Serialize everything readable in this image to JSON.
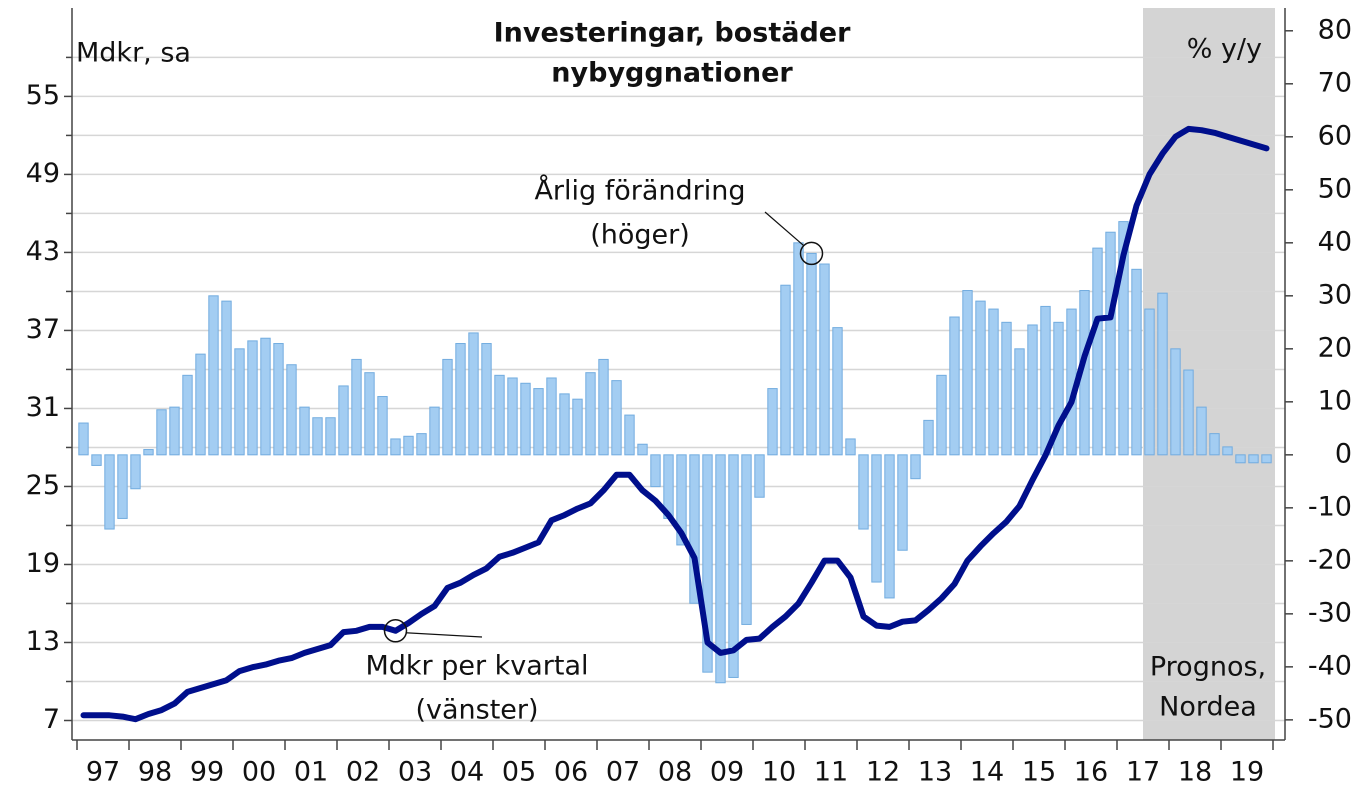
{
  "chart_data": {
    "type": "combo",
    "title": [
      "Investeringar, bostäder",
      "nybyggnationer"
    ],
    "y_label": "Mdkr, sa",
    "y2_label": "% y/y",
    "x_labels": [
      "97",
      "98",
      "99",
      "00",
      "01",
      "02",
      "03",
      "04",
      "05",
      "06",
      "07",
      "08",
      "09",
      "10",
      "11",
      "12",
      "13",
      "14",
      "15",
      "16",
      "17",
      "18",
      "19"
    ],
    "quarters_per_label": 4,
    "forecast_start_index": 82,
    "forecast_label": [
      "Prognos,",
      "Nordea"
    ],
    "forecast_color": "#d4d4d4",
    "ylim": [
      5.5,
      61.8
    ],
    "yticks": [
      7,
      13,
      19,
      25,
      31,
      37,
      43,
      49,
      55
    ],
    "y_minor_ticks": [
      10,
      16,
      22,
      28,
      34,
      40,
      46,
      52,
      58
    ],
    "y2lim": [
      -53.8,
      84.3
    ],
    "y2ticks": [
      -50,
      -40,
      -30,
      -20,
      -10,
      0,
      10,
      20,
      30,
      40,
      50,
      60,
      70,
      80
    ],
    "grid": true,
    "series": [
      {
        "type": "bar",
        "axis": "y2",
        "color": "#a3cdf2",
        "edge_color": "#72acdf",
        "annotation": [
          "Årlig förändring",
          "(höger)"
        ],
        "annotation_index": 56,
        "values": [
          6,
          -2,
          -14,
          -12,
          -6.4,
          1,
          8.5,
          9,
          15,
          19,
          30,
          29,
          20,
          21.5,
          22,
          21,
          17,
          9,
          7,
          7,
          13,
          18,
          15.5,
          11,
          3,
          3.5,
          4,
          9,
          18,
          21,
          23,
          21,
          15,
          14.5,
          13.5,
          12.5,
          14.5,
          11.5,
          10.5,
          15.5,
          18,
          14,
          7.5,
          2,
          -6,
          -12,
          -17,
          -28,
          -41,
          -43,
          -42,
          -32,
          -8,
          12.5,
          32,
          40,
          38,
          36,
          24,
          3,
          -14,
          -24,
          -27,
          -18,
          -4.5,
          6.5,
          15,
          26,
          31,
          29,
          27.5,
          25,
          20,
          24.5,
          28,
          25,
          27.5,
          31,
          39,
          42,
          44,
          35,
          27.5,
          30.5,
          20,
          16,
          9,
          4,
          1.5,
          -1.5,
          -1.5,
          -1.5
        ]
      },
      {
        "type": "line",
        "axis": "y",
        "color": "#000f8c",
        "annotation": [
          "Mdkr per kvartal",
          "(vänster)"
        ],
        "annotation_index": 24,
        "values": [
          7.4,
          7.4,
          7.4,
          7.3,
          7.1,
          7.5,
          7.8,
          8.3,
          9.2,
          9.5,
          9.8,
          10.1,
          10.8,
          11.1,
          11.3,
          11.6,
          11.8,
          12.2,
          12.5,
          12.8,
          13.8,
          13.9,
          14.2,
          14.2,
          13.9,
          14.5,
          15.2,
          15.8,
          17.2,
          17.6,
          18.2,
          18.7,
          19.6,
          19.9,
          20.3,
          20.7,
          22.4,
          22.8,
          23.3,
          23.7,
          24.7,
          25.9,
          25.9,
          24.7,
          23.9,
          22.8,
          21.4,
          19.5,
          13.0,
          12.2,
          12.4,
          13.2,
          13.3,
          14.2,
          15.0,
          16.0,
          17.6,
          19.3,
          19.3,
          18.0,
          15.0,
          14.3,
          14.2,
          14.6,
          14.7,
          15.5,
          16.4,
          17.5,
          19.3,
          20.4,
          21.4,
          22.3,
          23.5,
          25.5,
          27.4,
          29.7,
          31.5,
          35.0,
          37.9,
          38.0,
          42.8,
          46.6,
          49.0,
          50.6,
          51.9,
          52.5,
          52.4,
          52.2,
          51.9,
          51.6,
          51.3,
          51.0
        ]
      }
    ]
  }
}
